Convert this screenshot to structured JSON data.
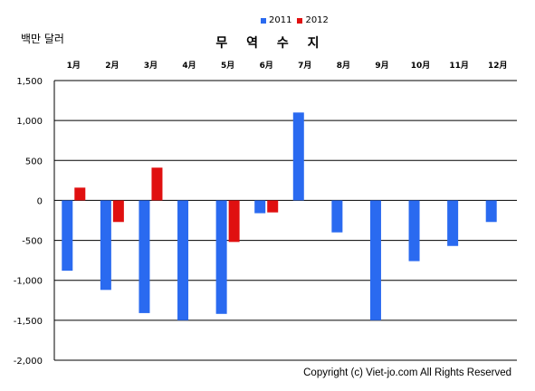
{
  "chart_data": {
    "type": "bar",
    "title": "무 역 수 지",
    "unit_label": "백만 달러",
    "categories": [
      "1月",
      "2月",
      "3月",
      "4月",
      "5月",
      "6月",
      "7月",
      "8月",
      "9月",
      "10月",
      "11月",
      "12月"
    ],
    "series": [
      {
        "name": "2011",
        "color": "#2a6af0",
        "values": [
          -880,
          -1120,
          -1410,
          -1500,
          -1420,
          -160,
          1100,
          -400,
          -1500,
          -760,
          -570,
          -270
        ]
      },
      {
        "name": "2012",
        "color": "#e01010",
        "values": [
          160,
          -270,
          410,
          null,
          -520,
          -150,
          null,
          null,
          null,
          null,
          null,
          null
        ]
      }
    ],
    "ylim": [
      -2000,
      1500
    ],
    "yticks": [
      1500,
      1000,
      500,
      0,
      -500,
      -1000,
      -1500,
      -2000
    ],
    "ytick_labels": [
      "1,500",
      "1,000",
      "500",
      "0",
      "-500",
      "-1,000",
      "-1,500",
      "-2,000"
    ],
    "grid": true,
    "legend_position": "top-center"
  },
  "copyright": "Copyright (c) Viet-jo.com All Rights Reserved"
}
